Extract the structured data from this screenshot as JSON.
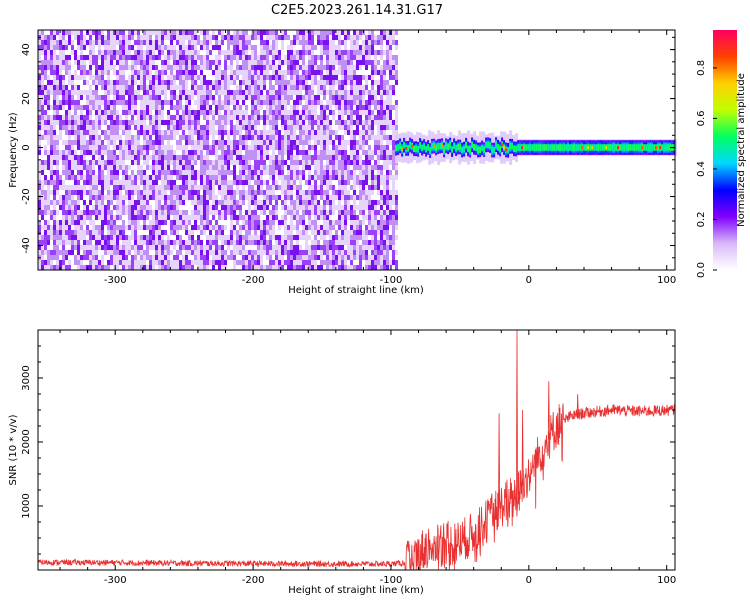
{
  "figure_title": "C2E5.2023.261.14.31.G17",
  "chart_data": [
    {
      "type": "heatmap",
      "xlabel": "Height of straight line (km)",
      "ylabel": "Frequency (Hz)",
      "xlim": [
        -356,
        106
      ],
      "ylim": [
        -50,
        48
      ],
      "xticks": [
        -300,
        -200,
        -100,
        0,
        100
      ],
      "yticks": [
        -40,
        -20,
        0,
        20,
        40
      ],
      "xtick_labels": [
        "-300",
        "-200",
        "-100",
        "0",
        "100"
      ],
      "ytick_labels": [
        "-40",
        "-20",
        "0",
        "20",
        "40"
      ],
      "colorbar": {
        "label": "Normalized spectral amplitude",
        "range": [
          0,
          0.95
        ],
        "ticks": [
          0,
          0.2,
          0.4,
          0.6,
          0.8
        ],
        "tick_labels": [
          "0.0",
          "0.2",
          "0.4",
          "0.6",
          "0.8"
        ],
        "colormap": [
          "#ffffff",
          "#d8b8f8",
          "#8000ff",
          "#0000ff",
          "#00d8ff",
          "#00ff60",
          "#c0ff00",
          "#ffd000",
          "#ff4000",
          "#ff0060"
        ]
      },
      "regions": [
        {
          "x_range": [
            -356,
            -97
          ],
          "freq_range": [
            -50,
            48
          ],
          "description": "broadband noise",
          "amplitude_range": [
            0.02,
            0.15
          ]
        },
        {
          "x_range": [
            -97,
            106
          ],
          "freq_center": 0,
          "half_width_hz": 3,
          "description": "carrier signal",
          "amplitude_range": [
            0.2,
            0.9
          ]
        }
      ]
    },
    {
      "type": "line",
      "xlabel": "Height of straight line (km)",
      "ylabel": "SNR (10 * v/v)",
      "xlim": [
        -356,
        106
      ],
      "ylim": [
        0,
        3750
      ],
      "xticks": [
        -300,
        -200,
        -100,
        0,
        100
      ],
      "yticks": [
        1000,
        2000,
        3000
      ],
      "xtick_labels": [
        "-300",
        "-200",
        "-100",
        "0",
        "100"
      ],
      "ytick_labels": [
        "1000",
        "2000",
        "3000"
      ],
      "color": "#e83030",
      "series_profile": {
        "x": [
          -356,
          -300,
          -250,
          -200,
          -150,
          -100,
          -85,
          -75,
          -65,
          -55,
          -45,
          -35,
          -25,
          -15,
          -8,
          0,
          10,
          20,
          30,
          40,
          60,
          80,
          106
        ],
        "y": [
          120,
          115,
          105,
          100,
          95,
          95,
          120,
          350,
          450,
          400,
          500,
          650,
          900,
          1100,
          1200,
          1500,
          1900,
          2250,
          2400,
          2450,
          2500,
          2480,
          2500
        ]
      },
      "spikes": [
        {
          "x": -22,
          "y": 2450
        },
        {
          "x": -9,
          "y": 3750
        },
        {
          "x": -5,
          "y": 2500
        },
        {
          "x": 14,
          "y": 2950
        },
        {
          "x": 35,
          "y": 2750
        }
      ]
    }
  ]
}
